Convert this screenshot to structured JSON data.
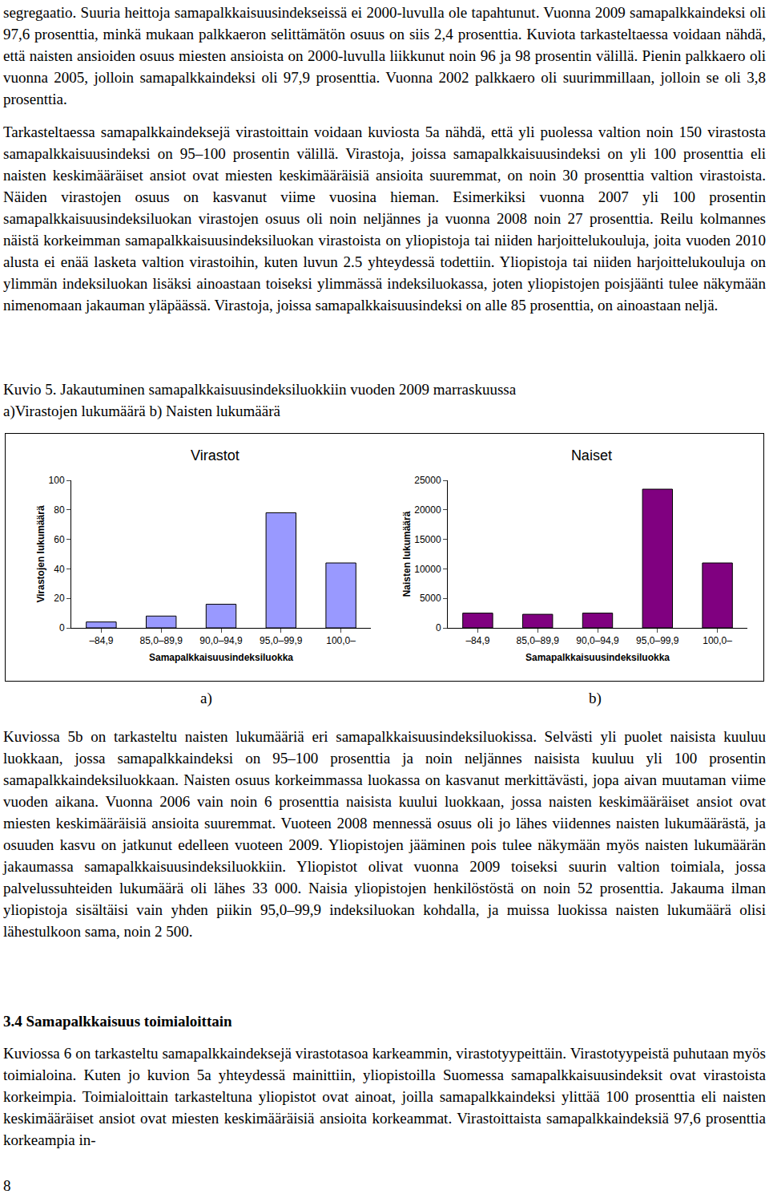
{
  "paragraphs_before": [
    "segregaatio. Suuria heittoja samapalkkaisuusindekseissä ei 2000-luvulla ole tapahtunut. Vuonna 2009 samapalkkaindeksi oli 97,6 prosenttia, minkä mukaan palkkaeron selittämätön osuus on siis 2,4 prosenttia. Kuviota tarkasteltaessa voidaan nähdä, että naisten ansioiden osuus miesten ansioista on 2000-luvulla liikkunut noin 96 ja 98 prosentin välillä. Pienin palkkaero oli vuonna 2005, jolloin samapalkkaindeksi oli 97,9 prosenttia. Vuonna 2002 palkkaero oli suurimmillaan, jolloin se oli 3,8 prosenttia.",
    "Tarkasteltaessa samapalkkaindeksejä virastoittain voidaan kuviosta 5a nähdä, että yli puolessa valtion noin 150 virastosta samapalkkaisuusindeksi on 95–100 prosentin välillä. Virastoja, joissa samapalkkaisuusindeksi on yli 100 prosenttia eli naisten keskimääräiset ansiot ovat miesten keskimääräisiä ansioita suuremmat, on noin 30 prosenttia valtion virastoista. Näiden virastojen osuus on kasvanut viime vuosina hieman. Esimerkiksi vuonna 2007 yli 100 prosentin samapalkkaisuusindeksiluokan virastojen osuus oli noin neljännes ja vuonna 2008 noin 27 prosenttia. Reilu kolmannes näistä korkeimman samapalkkaisuusindeksiluokan virastoista on yliopistoja tai niiden harjoittelukouluja, joita vuoden 2010 alusta ei enää lasketa valtion virastoihin, kuten luvun 2.5 yhteydessä todettiin. Yliopistoja tai niiden harjoittelukouluja on ylimmän indeksiluokan lisäksi ainoastaan toiseksi ylimmässä indeksiluokassa, joten yliopistojen poisjäänti tulee näkymään nimenomaan jakauman yläpäässä. Virastoja, joissa samapalkkaisuusindeksi on alle 85 prosenttia, on ainoastaan neljä."
  ],
  "caption": {
    "title": "Kuvio 5. Jakautuminen samapalkkaisuusindeksiluokkiin vuoden 2009 marraskuussa",
    "subtitle": "a)Virastojen lukumäärä b) Naisten lukumäärä"
  },
  "chart_data": [
    {
      "type": "bar",
      "title": "Virastot",
      "xlabel": "Samapalkkaisuusindeksiluokka",
      "ylabel": "Virastojen lukumäärä",
      "categories": [
        "–84,9",
        "85,0–89,9",
        "90,0–94,9",
        "95,0–99,9",
        "100,0–"
      ],
      "values": [
        4,
        8,
        16,
        78,
        44
      ],
      "color": "#9999ff",
      "ylim": [
        0,
        100
      ],
      "yticks": [
        0,
        20,
        40,
        60,
        80,
        100
      ],
      "grid": false
    },
    {
      "type": "bar",
      "title": "Naiset",
      "xlabel": "Samapalkkaisuusindeksiluokka",
      "ylabel": "Naisten lukumäärä",
      "categories": [
        "–84,9",
        "85,0–89,9",
        "90,0–94,9",
        "95,0–99,9",
        "100,0–"
      ],
      "values": [
        2500,
        2300,
        2500,
        23500,
        11000
      ],
      "color": "#800080",
      "ylim": [
        0,
        25000
      ],
      "yticks": [
        0,
        5000,
        10000,
        15000,
        20000,
        25000
      ],
      "grid": false
    }
  ],
  "panel_labels": [
    "a)",
    "b)"
  ],
  "paragraphs_after": [
    "Kuviossa 5b on tarkasteltu naisten lukumääriä eri samapalkkaisuusindeksiluokissa. Selvästi yli puolet naisista kuuluu luokkaan, jossa samapalkkaindeksi on 95–100 prosenttia ja noin neljännes naisista kuuluu yli 100 prosentin samapalkkaindeksiluokkaan. Naisten osuus korkeimmassa luokassa on kasvanut merkittävästi, jopa aivan muutaman viime vuoden aikana. Vuonna 2006 vain noin 6 prosenttia naisista kuului luokkaan, jossa naisten keskimääräiset ansiot ovat miesten keskimääräisiä ansioita suuremmat. Vuoteen 2008 mennessä osuus oli jo lähes viidennes naisten lukumäärästä, ja osuuden kasvu on jatkunut edelleen vuoteen 2009. Yliopistojen jääminen pois tulee näkymään myös naisten lukumäärän jakaumassa samapalkkaisuusindeksiluokkiin. Yliopistot olivat vuonna 2009 toiseksi suurin valtion toimiala, jossa palvelussuhteiden lukumäärä oli lähes 33 000. Naisia yliopistojen henkilöstöstä on noin 52 prosenttia. Jakauma ilman yliopistoja sisältäisi vain yhden piikin 95,0–99,9 indeksiluokan kohdalla, ja muissa luokissa naisten lukumäärä olisi lähestulkoon sama, noin 2 500."
  ],
  "heading": "3.4 Samapalkkaisuus toimialoittain",
  "paragraphs_end": [
    "Kuviossa 6 on tarkasteltu samapalkkaindeksejä virastotasoa karkeammin, virastotyypeittäin. Virastotyypeistä puhutaan myös toimialoina. Kuten jo kuvion 5a yhteydessä mainittiin, yliopistoilla Suomessa samapalkkaisuusindeksit ovat virastoista korkeimpia. Toimialoittain tarkasteltuna yliopistot ovat ainoat, joilla samapalkkaindeksi ylittää 100 prosenttia eli naisten keskimääräiset ansiot ovat miesten keskimääräisiä ansioita korkeammat. Virastoittaista samapalkkaindeksiä 97,6 prosenttia korkeampia in-"
  ],
  "page_number": "8"
}
